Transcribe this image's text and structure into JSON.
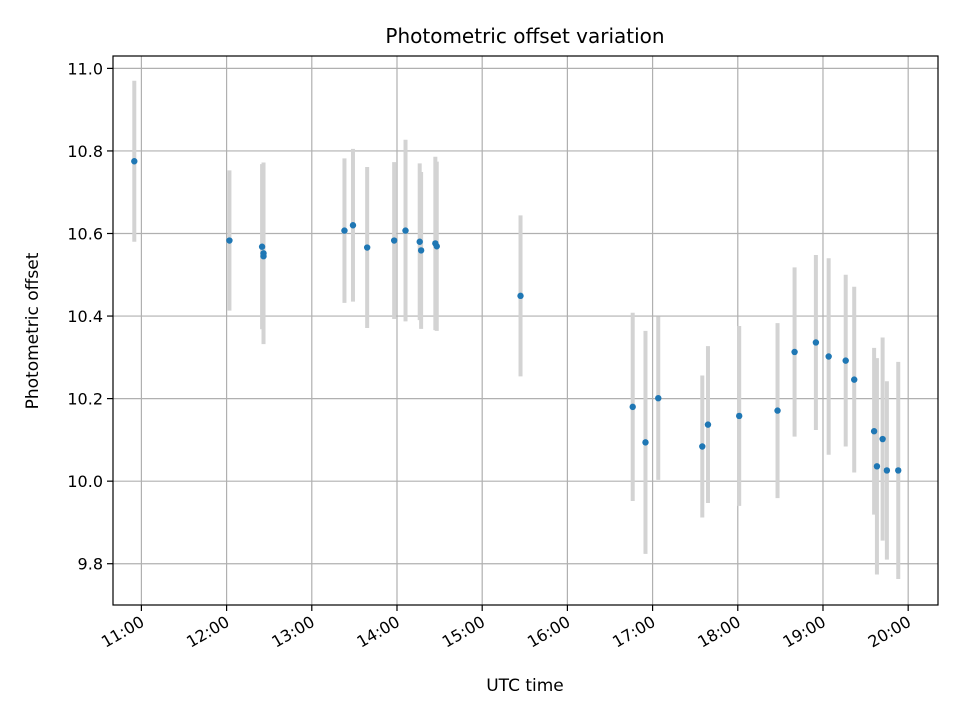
{
  "chart_data": {
    "type": "scatter",
    "title": "Photometric offset variation",
    "xlabel": "UTC time",
    "ylabel": "Photometric offset",
    "grid": true,
    "xlim": [
      "10:40",
      "20:21"
    ],
    "ylim": [
      9.7,
      11.03
    ],
    "x_ticks": [
      "11:00",
      "12:00",
      "13:00",
      "14:00",
      "15:00",
      "16:00",
      "17:00",
      "18:00",
      "19:00",
      "20:00"
    ],
    "y_ticks": [
      "9.8",
      "10.0",
      "10.2",
      "10.4",
      "10.6",
      "10.8",
      "11.0"
    ],
    "colors": {
      "point": "#1f77b4",
      "errorbar": "#d3d3d3",
      "grid": "#b0b0b0"
    },
    "series": [
      {
        "points": [
          {
            "x": "10:55",
            "y": 10.775,
            "err": 0.195
          },
          {
            "x": "12:02",
            "y": 10.583,
            "err": 0.17
          },
          {
            "x": "12:25",
            "y": 10.568,
            "err": 0.2
          },
          {
            "x": "12:26",
            "y": 10.552,
            "err": 0.22
          },
          {
            "x": "12:26",
            "y": 10.545,
            "err": 0.21
          },
          {
            "x": "13:23",
            "y": 10.607,
            "err": 0.175
          },
          {
            "x": "13:29",
            "y": 10.62,
            "err": 0.185
          },
          {
            "x": "13:39",
            "y": 10.566,
            "err": 0.195
          },
          {
            "x": "13:58",
            "y": 10.583,
            "err": 0.19
          },
          {
            "x": "14:06",
            "y": 10.607,
            "err": 0.22
          },
          {
            "x": "14:16",
            "y": 10.58,
            "err": 0.19
          },
          {
            "x": "14:17",
            "y": 10.559,
            "err": 0.19
          },
          {
            "x": "14:27",
            "y": 10.576,
            "err": 0.21
          },
          {
            "x": "14:28",
            "y": 10.569,
            "err": 0.205
          },
          {
            "x": "15:27",
            "y": 10.449,
            "err": 0.195
          },
          {
            "x": "16:46",
            "y": 10.18,
            "err": 0.228
          },
          {
            "x": "16:55",
            "y": 10.094,
            "err": 0.27
          },
          {
            "x": "17:04",
            "y": 10.201,
            "err": 0.198
          },
          {
            "x": "17:35",
            "y": 10.084,
            "err": 0.172
          },
          {
            "x": "17:39",
            "y": 10.137,
            "err": 0.19
          },
          {
            "x": "18:01",
            "y": 10.158,
            "err": 0.218
          },
          {
            "x": "18:28",
            "y": 10.171,
            "err": 0.212
          },
          {
            "x": "18:40",
            "y": 10.313,
            "err": 0.205
          },
          {
            "x": "18:55",
            "y": 10.336,
            "err": 0.212
          },
          {
            "x": "19:04",
            "y": 10.302,
            "err": 0.238
          },
          {
            "x": "19:16",
            "y": 10.292,
            "err": 0.208
          },
          {
            "x": "19:22",
            "y": 10.246,
            "err": 0.225
          },
          {
            "x": "19:36",
            "y": 10.121,
            "err": 0.202
          },
          {
            "x": "19:38",
            "y": 10.036,
            "err": 0.262
          },
          {
            "x": "19:42",
            "y": 10.102,
            "err": 0.246
          },
          {
            "x": "19:45",
            "y": 10.026,
            "err": 0.216
          },
          {
            "x": "19:53",
            "y": 10.026,
            "err": 0.263
          }
        ]
      }
    ]
  }
}
